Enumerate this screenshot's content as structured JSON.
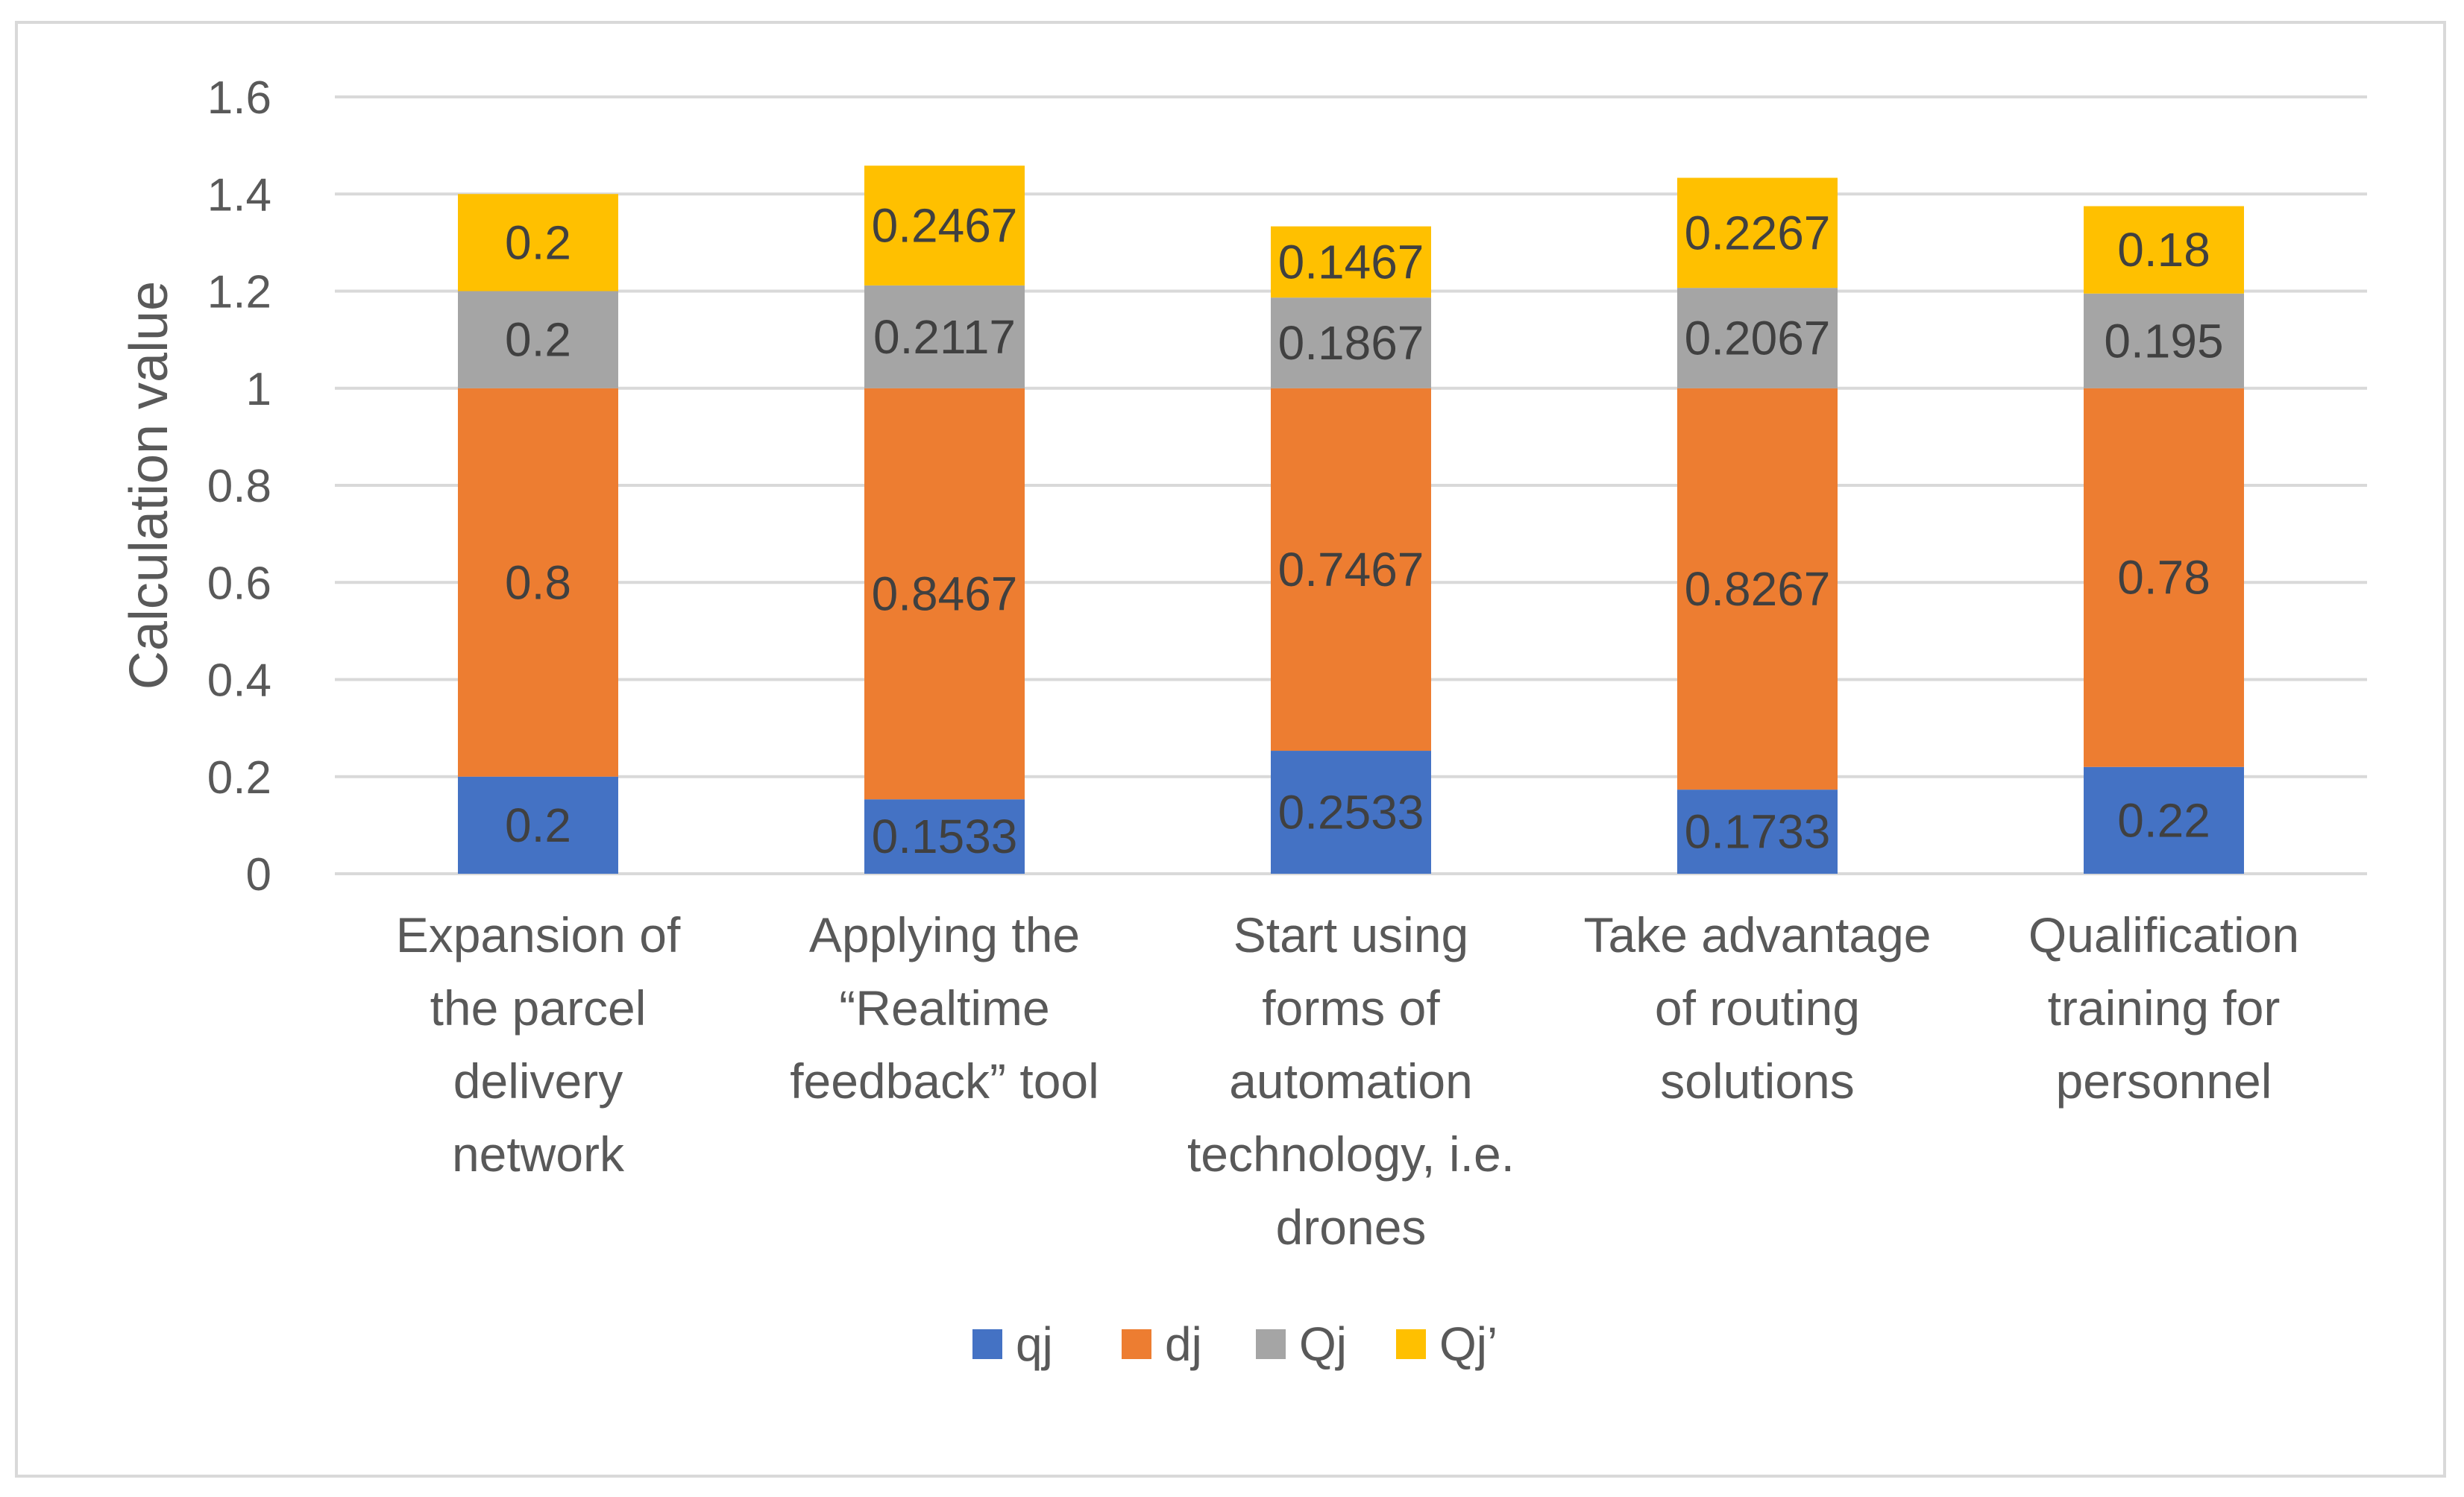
{
  "chart_data": {
    "type": "bar",
    "stacked": true,
    "ylabel": "Calculation value",
    "xlabel": "",
    "ylim": [
      0,
      1.6
    ],
    "y_ticks": [
      "0",
      "0.2",
      "0.4",
      "0.6",
      "0.8",
      "1",
      "1.2",
      "1.4",
      "1.6"
    ],
    "grid": true,
    "legend_position": "bottom",
    "categories": [
      [
        "Expansion of",
        "the parcel",
        "delivery",
        "network"
      ],
      [
        "Applying the",
        "“Realtime",
        "feedback” tool"
      ],
      [
        "Start using",
        "forms of",
        "automation",
        "technology, i.e.",
        "drones"
      ],
      [
        "Take advantage",
        "of routing",
        "solutions"
      ],
      [
        "Qualification",
        "training for",
        "personnel"
      ]
    ],
    "series": [
      {
        "name": "qj",
        "color": "#4472c4",
        "values": [
          0.2,
          0.1533,
          0.2533,
          0.1733,
          0.22
        ],
        "labels": [
          "0.2",
          "0.1533",
          "0.2533",
          "0.1733",
          "0.22"
        ]
      },
      {
        "name": "dj",
        "color": "#ed7d31",
        "values": [
          0.8,
          0.8467,
          0.7467,
          0.8267,
          0.78
        ],
        "labels": [
          "0.8",
          "0.8467",
          "0.7467",
          "0.8267",
          "0.78"
        ]
      },
      {
        "name": "Qj",
        "color": "#a5a5a5",
        "values": [
          0.2,
          0.2117,
          0.1867,
          0.2067,
          0.195
        ],
        "labels": [
          "0.2",
          "0.2117",
          "0.1867",
          "0.2067",
          "0.195"
        ]
      },
      {
        "name": "Qj’",
        "color": "#ffc000",
        "values": [
          0.2,
          0.2467,
          0.1467,
          0.2267,
          0.18
        ],
        "labels": [
          "0.2",
          "0.2467",
          "0.1467",
          "0.2267",
          "0.18"
        ]
      }
    ]
  }
}
